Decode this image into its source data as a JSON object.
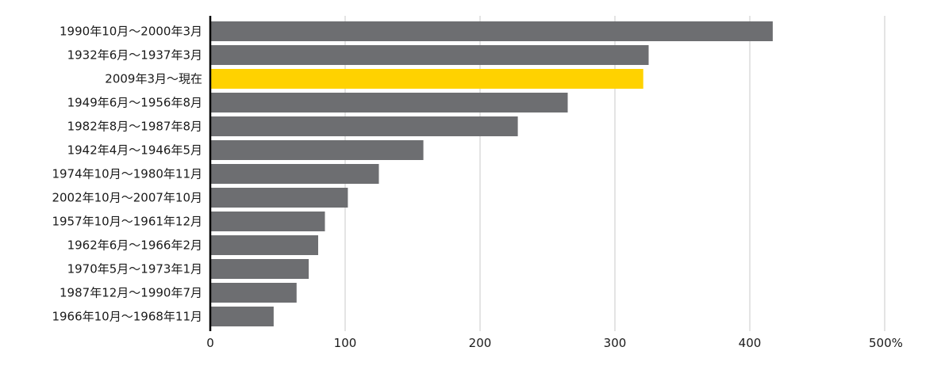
{
  "chart_data": {
    "type": "bar",
    "orientation": "horizontal",
    "categories": [
      "1990年10月～2000年3月",
      "1932年6月～1937年3月",
      "2009年3月～現在",
      "1949年6月～1956年8月",
      "1982年8月～1987年8月",
      "1942年4月～1946年5月",
      "1974年10月～1980年11月",
      "2002年10月～2007年10月",
      "1957年10月～1961年12月",
      "1962年6月～1966年2月",
      "1970年5月～1973年1月",
      "1987年12月～1990年7月",
      "1966年10月～1968年11月"
    ],
    "values": [
      417,
      325,
      321,
      265,
      228,
      158,
      125,
      102,
      85,
      80,
      73,
      64,
      47
    ],
    "highlight_index": 2,
    "xlim": [
      0,
      500
    ],
    "xticks": [
      {
        "value": 0,
        "label": "0"
      },
      {
        "value": 100,
        "label": "100"
      },
      {
        "value": 200,
        "label": "200"
      },
      {
        "value": 300,
        "label": "300"
      },
      {
        "value": 400,
        "label": "400"
      },
      {
        "value": 500,
        "label": "500%"
      }
    ],
    "grid": true,
    "title": "",
    "xlabel": "",
    "ylabel": "",
    "colors": {
      "bar": "#6d6e71",
      "highlight": "#ffd200",
      "grid": "#c8c8c8",
      "axis": "#000000",
      "text": "#1a1a1a"
    }
  }
}
